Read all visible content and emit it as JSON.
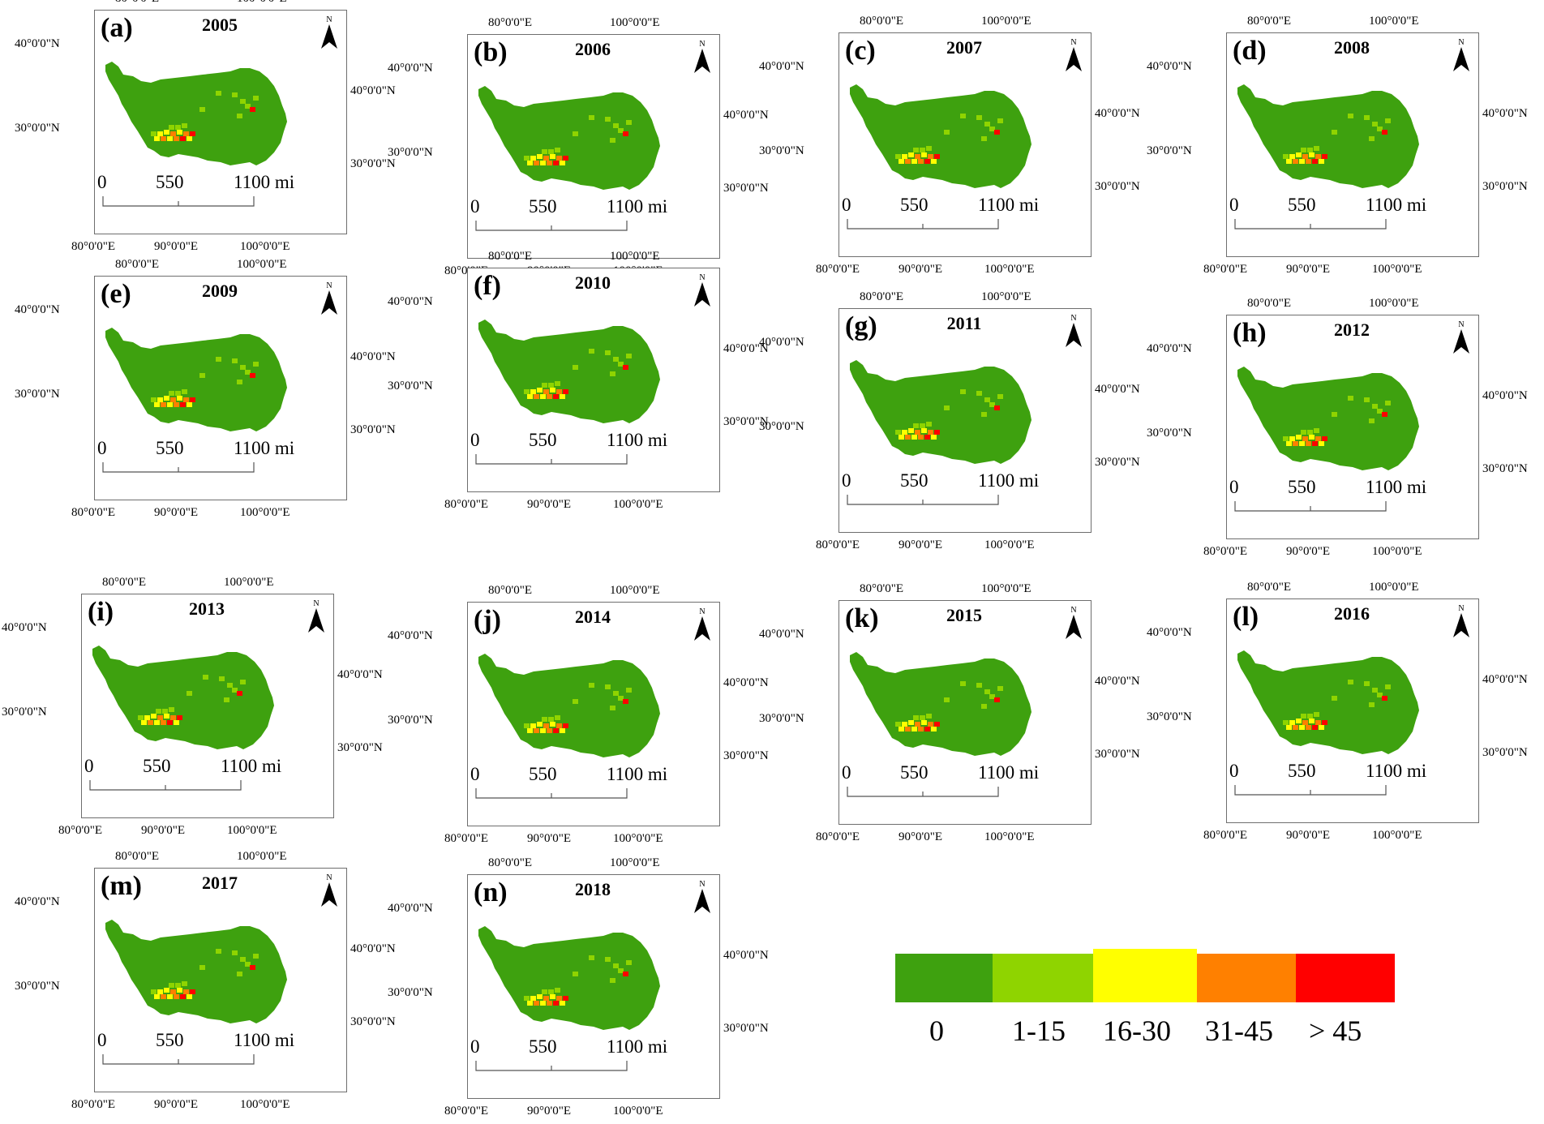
{
  "coords": {
    "lon_80": "80°0'0\"E",
    "lon_90": "90°0'0\"E",
    "lon_100": "100°0'0\"E",
    "lat_40": "40°0'0\"N",
    "lat_30": "30°0'0\"N"
  },
  "scale": {
    "zero": "0",
    "mid": "550",
    "end": "1100 mi"
  },
  "north_label": "N",
  "panels": [
    {
      "letter": "(a)",
      "year": "2005"
    },
    {
      "letter": "(b)",
      "year": "2006"
    },
    {
      "letter": "(c)",
      "year": "2007"
    },
    {
      "letter": "(d)",
      "year": "2008"
    },
    {
      "letter": "(e)",
      "year": "2009"
    },
    {
      "letter": "(f)",
      "year": "2010"
    },
    {
      "letter": "(g)",
      "year": "2011"
    },
    {
      "letter": "(h)",
      "year": "2012"
    },
    {
      "letter": "(i)",
      "year": "2013"
    },
    {
      "letter": "(j)",
      "year": "2014"
    },
    {
      "letter": "(k)",
      "year": "2015"
    },
    {
      "letter": "(l)",
      "year": "2016"
    },
    {
      "letter": "(m)",
      "year": "2017"
    },
    {
      "letter": "(n)",
      "year": "2018"
    }
  ],
  "legend": [
    {
      "label": "0",
      "color": "#3ea10f"
    },
    {
      "label": "1-15",
      "color": "#8fd400"
    },
    {
      "label": "16-30",
      "color": "#ffff00"
    },
    {
      "label": "31-45",
      "color": "#ff8000"
    },
    {
      "label": "> 45",
      "color": "#ff0000"
    }
  ]
}
